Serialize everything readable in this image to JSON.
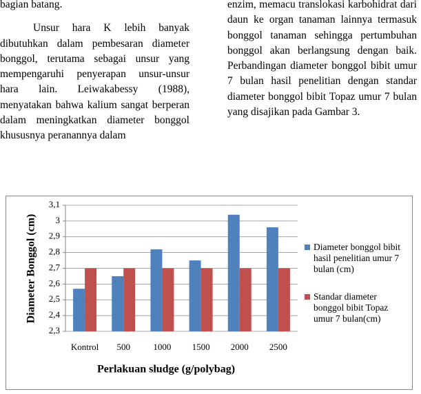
{
  "text": {
    "left": [
      "bagian batang.",
      "Unsur hara K lebih banyak dibutuhkan dalam pembesaran diameter bonggol, terutama sebagai unsur yang mempengaruhi penyerapan unsur-unsur hara lain. Leiwakabessy (1988), menyatakan bahwa kalium sangat berperan dalam meningkatkan diameter bonggol khususnya peranannya dalam"
    ],
    "right": [
      "enzim, memacu translokasi karbohidrat dari daun ke organ tanaman lainnya termasuk bonggol tanaman sehingga pertumbuhan bonggol akan berlangsung dengan baik. Perbandingan diameter bonggol bibit umur 7 bulan hasil penelitian dengan standar diameter bonggol bibit Topaz umur 7 bulan yang disajikan pada Gambar 3."
    ]
  },
  "chart_data": {
    "type": "bar",
    "x_label": "Perlakuan sludge (g/polybag)",
    "y_label": "Diameter Bonggol (cm)",
    "categories": [
      "Kontrol",
      "500",
      "1000",
      "1500",
      "2000",
      "2500"
    ],
    "series": [
      {
        "name": "Diameter bonggol bibit hasil penelitian umur 7 bulan (cm)",
        "color": "#4f81bd",
        "values": [
          2.57,
          2.65,
          2.82,
          2.75,
          3.04,
          2.96
        ]
      },
      {
        "name": "Standar diameter bonggol bibit Topaz umur 7 bulan(cm)",
        "color": "#c0504d",
        "values": [
          2.7,
          2.7,
          2.7,
          2.7,
          2.7,
          2.7
        ]
      }
    ],
    "ylim": [
      2.3,
      3.1
    ],
    "yticks": [
      {
        "value": 2.3,
        "label": "2,3"
      },
      {
        "value": 2.4,
        "label": "2,4"
      },
      {
        "value": 2.5,
        "label": "2,5"
      },
      {
        "value": 2.6,
        "label": "2,6"
      },
      {
        "value": 2.7,
        "label": "2,7"
      },
      {
        "value": 2.8,
        "label": "2,8"
      },
      {
        "value": 2.9,
        "label": "2,9"
      },
      3,
      {
        "value": 3.1,
        "label": "3,1"
      }
    ],
    "grid": true,
    "legend": "right"
  }
}
